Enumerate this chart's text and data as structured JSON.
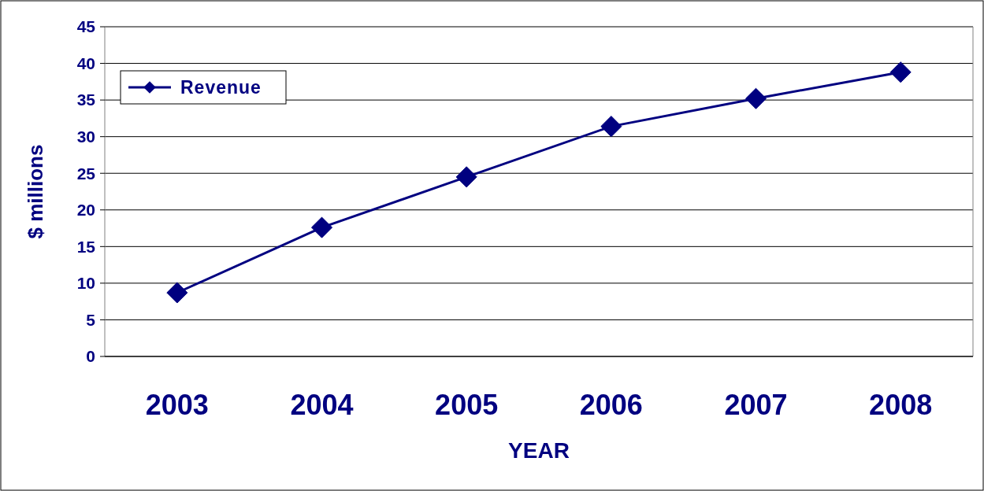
{
  "chart_data": {
    "type": "line",
    "xlabel": "YEAR",
    "ylabel": "$ millions",
    "categories": [
      "2003",
      "2004",
      "2005",
      "2006",
      "2007",
      "2008"
    ],
    "series": [
      {
        "name": "Revenue",
        "color": "#000080",
        "values": [
          8.7,
          17.6,
          24.5,
          31.4,
          35.2,
          38.8
        ]
      }
    ],
    "ylim": [
      0,
      45
    ],
    "yticks": [
      0,
      5,
      10,
      15,
      20,
      25,
      30,
      35,
      40,
      45
    ],
    "grid": "y",
    "legend": "top left",
    "marker": "diamond",
    "line_style": "solid"
  }
}
